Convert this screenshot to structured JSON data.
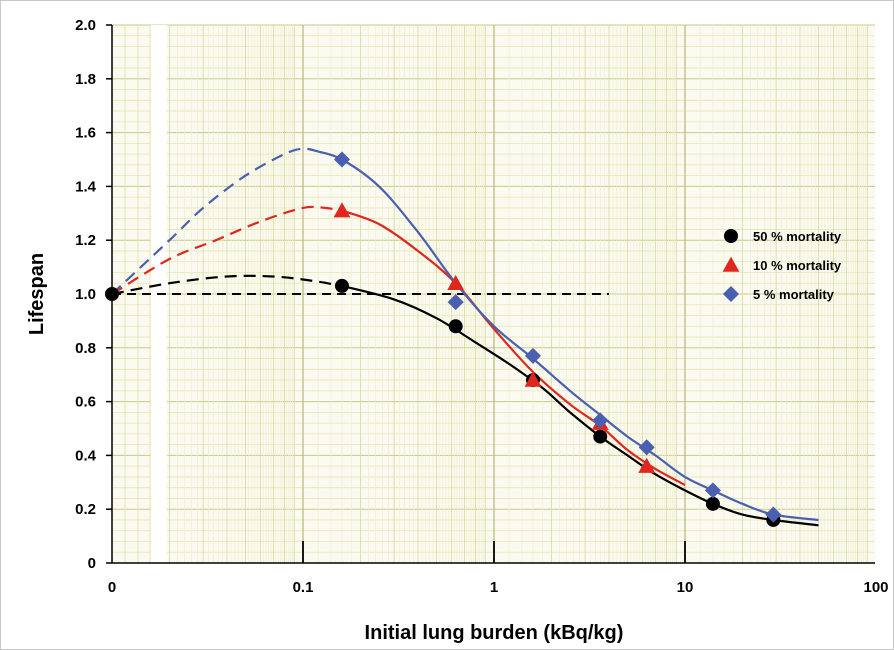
{
  "chart_data": {
    "type": "scatter",
    "title": "",
    "xlabel": "Initial lung burden (kBq/kg)",
    "ylabel": "Lifespan",
    "x_scale": "log (with separate zero point)",
    "xlim": [
      0.02,
      100
    ],
    "ylim": [
      0,
      2.0
    ],
    "grid": true,
    "legend_position": "right",
    "x_tick_labels": [
      "0",
      "0.1",
      "1",
      "10",
      "100"
    ],
    "y_tick_labels": [
      "0",
      "0.2",
      "0.4",
      "0.6",
      "0.8",
      "1.0",
      "1.2",
      "1.4",
      "1.6",
      "1.8",
      "2.0"
    ],
    "reference_line": {
      "y": 1.0,
      "x_to": 4,
      "style": "dashed",
      "color": "#000000"
    },
    "series": [
      {
        "name": "50 % mortality",
        "marker": "circle",
        "color": "#000000",
        "points": [
          {
            "x": 0,
            "y": 1.0
          },
          {
            "x": 0.16,
            "y": 1.03
          },
          {
            "x": 0.63,
            "y": 0.88
          },
          {
            "x": 1.6,
            "y": 0.68
          },
          {
            "x": 3.6,
            "y": 0.47
          },
          {
            "x": 14,
            "y": 0.22
          },
          {
            "x": 29,
            "y": 0.16
          }
        ],
        "fit_dashed": [
          [
            0,
            1.0
          ],
          [
            0.02,
            1.04
          ],
          [
            0.04,
            1.065
          ],
          [
            0.07,
            1.065
          ],
          [
            0.11,
            1.05
          ],
          [
            0.16,
            1.03
          ]
        ],
        "fit_solid": [
          [
            0.16,
            1.03
          ],
          [
            0.3,
            0.98
          ],
          [
            0.5,
            0.91
          ],
          [
            0.8,
            0.82
          ],
          [
            1.2,
            0.74
          ],
          [
            1.8,
            0.65
          ],
          [
            2.5,
            0.56
          ],
          [
            3.6,
            0.47
          ],
          [
            5,
            0.4
          ],
          [
            7,
            0.33
          ],
          [
            10,
            0.27
          ],
          [
            14,
            0.22
          ],
          [
            20,
            0.18
          ],
          [
            29,
            0.16
          ],
          [
            50,
            0.14
          ]
        ]
      },
      {
        "name": "10 % mortality",
        "marker": "triangle",
        "color": "#e0271f",
        "points": [
          {
            "x": 0,
            "y": 1.0
          },
          {
            "x": 0.16,
            "y": 1.31
          },
          {
            "x": 0.63,
            "y": 1.04
          },
          {
            "x": 1.6,
            "y": 0.68
          },
          {
            "x": 3.6,
            "y": 0.52
          },
          {
            "x": 6.3,
            "y": 0.36
          }
        ],
        "fit_dashed": [
          [
            0,
            1.0
          ],
          [
            0.02,
            1.13
          ],
          [
            0.035,
            1.2
          ],
          [
            0.06,
            1.27
          ],
          [
            0.1,
            1.32
          ],
          [
            0.13,
            1.32
          ],
          [
            0.16,
            1.31
          ]
        ],
        "fit_solid": [
          [
            0.16,
            1.31
          ],
          [
            0.25,
            1.26
          ],
          [
            0.4,
            1.16
          ],
          [
            0.63,
            1.04
          ],
          [
            1.0,
            0.87
          ],
          [
            1.6,
            0.71
          ],
          [
            2.5,
            0.59
          ],
          [
            3.6,
            0.51
          ],
          [
            5,
            0.42
          ],
          [
            7,
            0.35
          ],
          [
            10,
            0.29
          ]
        ]
      },
      {
        "name": "5 % mortality",
        "marker": "diamond",
        "color": "#4b5fb0",
        "points": [
          {
            "x": 0,
            "y": 1.0
          },
          {
            "x": 0.16,
            "y": 1.5
          },
          {
            "x": 0.63,
            "y": 0.97
          },
          {
            "x": 1.6,
            "y": 0.77
          },
          {
            "x": 3.6,
            "y": 0.53
          },
          {
            "x": 6.3,
            "y": 0.43
          },
          {
            "x": 14,
            "y": 0.27
          },
          {
            "x": 29,
            "y": 0.18
          }
        ],
        "fit_dashed": [
          [
            0,
            1.0
          ],
          [
            0.02,
            1.2
          ],
          [
            0.03,
            1.32
          ],
          [
            0.05,
            1.44
          ],
          [
            0.08,
            1.52
          ],
          [
            0.1,
            1.54
          ],
          [
            0.12,
            1.53
          ]
        ],
        "fit_solid": [
          [
            0.12,
            1.53
          ],
          [
            0.16,
            1.5
          ],
          [
            0.25,
            1.4
          ],
          [
            0.4,
            1.23
          ],
          [
            0.63,
            1.04
          ],
          [
            1.0,
            0.88
          ],
          [
            1.6,
            0.76
          ],
          [
            2.5,
            0.64
          ],
          [
            3.6,
            0.55
          ],
          [
            5,
            0.47
          ],
          [
            7,
            0.4
          ],
          [
            10,
            0.32
          ],
          [
            14,
            0.27
          ],
          [
            20,
            0.22
          ],
          [
            29,
            0.18
          ],
          [
            50,
            0.16
          ]
        ]
      }
    ]
  }
}
